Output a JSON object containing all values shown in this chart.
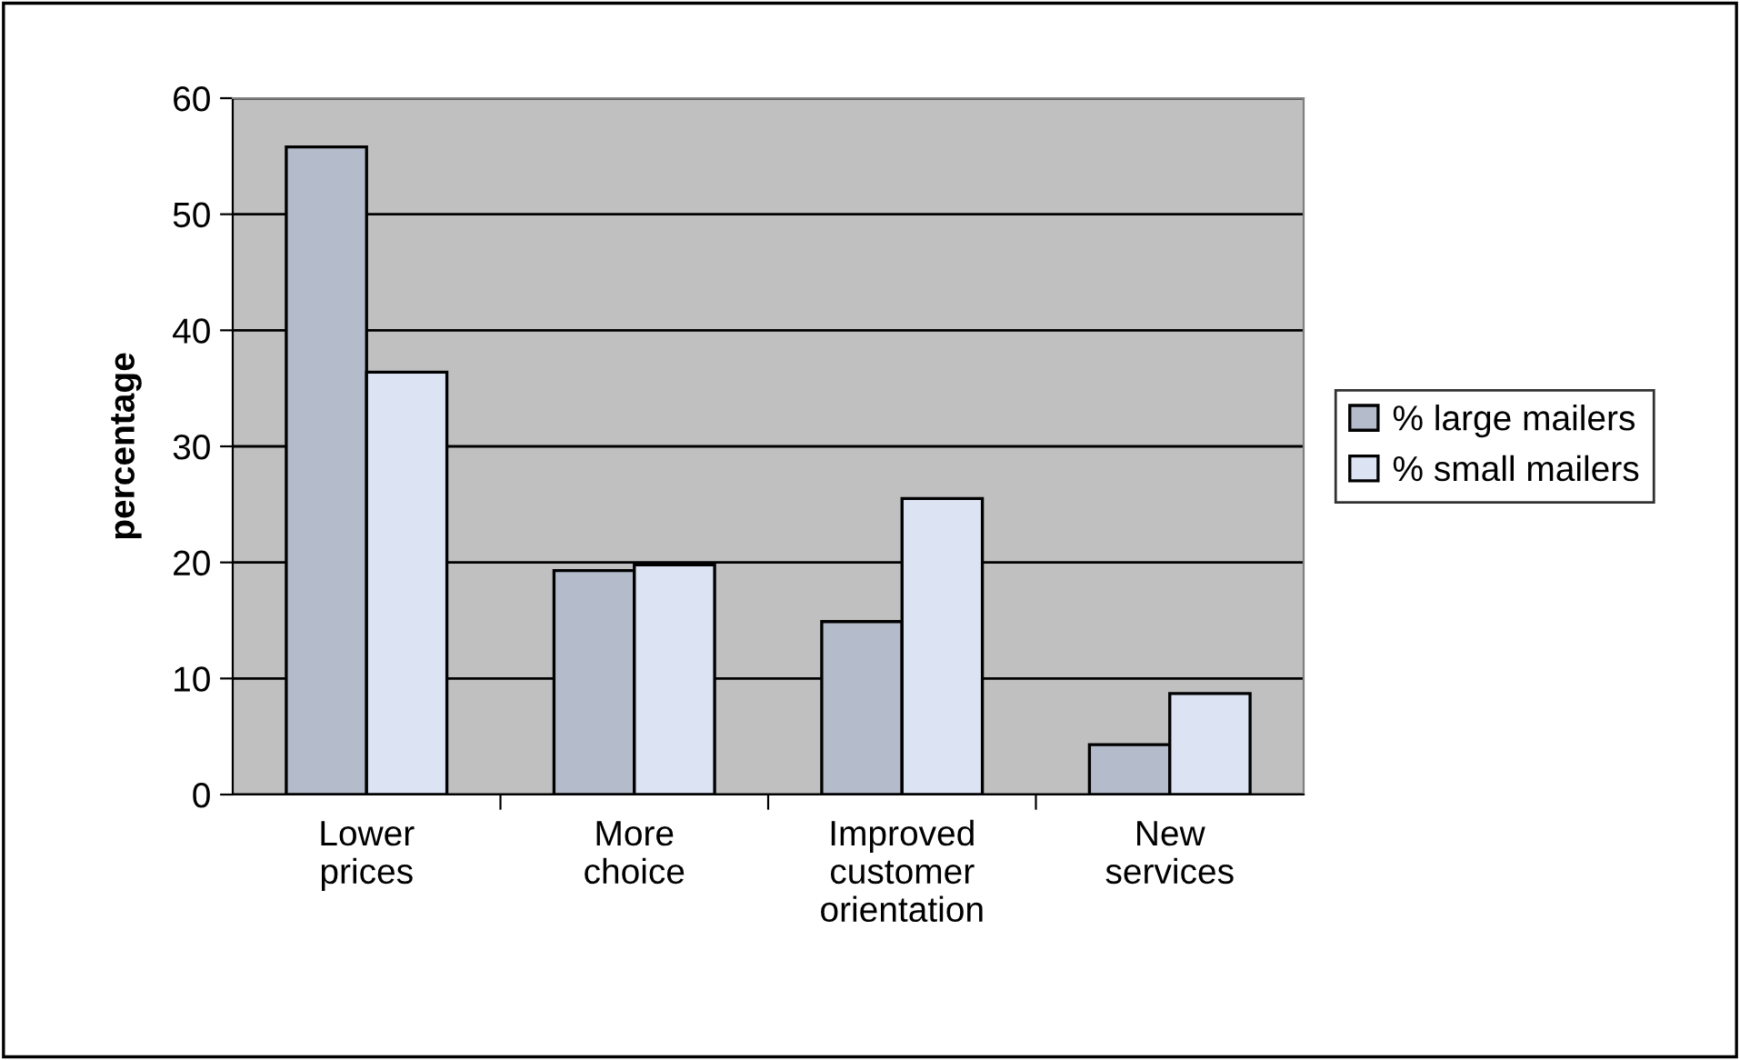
{
  "chart_data": {
    "type": "bar",
    "ylabel": "percentage",
    "categories": [
      "Lower\nprices",
      "More\nchoice",
      "Improved\ncustomer\norientation",
      "New\nservices"
    ],
    "series": [
      {
        "name": "% large mailers",
        "color": "#b4bccc",
        "values": [
          55.8,
          19.3,
          14.9,
          4.3
        ]
      },
      {
        "name": "% small mailers",
        "color": "#dce4f4",
        "values": [
          36.4,
          19.8,
          25.5,
          8.7
        ]
      }
    ],
    "ylim": [
      0,
      60
    ],
    "yticks": [
      0,
      10,
      20,
      30,
      40,
      50,
      60
    ],
    "grid": "y",
    "legend": "right"
  }
}
